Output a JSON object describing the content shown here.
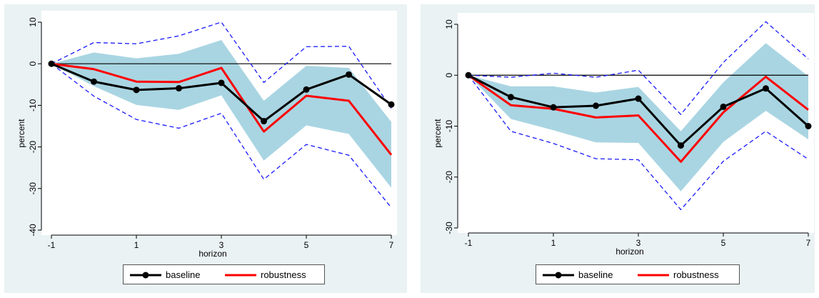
{
  "chart_data": [
    {
      "type": "line",
      "xlabel": "horizon",
      "ylabel": "percent",
      "x": [
        -1,
        0,
        1,
        2,
        3,
        4,
        5,
        6,
        7
      ],
      "xticks": [
        "-1",
        "1",
        "3",
        "5",
        "7"
      ],
      "yticks": [
        "10",
        "0",
        "-10",
        "-20",
        "-30",
        "-40"
      ],
      "ylim": [
        -40,
        10
      ],
      "xlim": [
        -1,
        7
      ],
      "zero_line": true,
      "series": [
        {
          "name": "baseline",
          "color": "#000000",
          "markers": true,
          "values": [
            0,
            -4.3,
            -6.3,
            -5.9,
            -4.6,
            -13.8,
            -6.2,
            -2.6,
            -9.8
          ]
        },
        {
          "name": "robustness",
          "color": "#ff0000",
          "markers": false,
          "values": [
            0,
            -1.3,
            -4.3,
            -4.4,
            -1.0,
            -16.3,
            -7.7,
            -8.9,
            -21.9
          ]
        }
      ],
      "band_inner": {
        "color": "#a9d5e2",
        "upper": [
          0,
          2.7,
          1.3,
          2.4,
          5.7,
          -8.9,
          -0.5,
          -1.0,
          -14.0
        ],
        "lower": [
          0,
          -5.4,
          -9.9,
          -11.1,
          -7.6,
          -23.3,
          -14.8,
          -16.9,
          -29.8
        ]
      },
      "band_outer": {
        "color": "#1a1aff",
        "upper": [
          0,
          5.1,
          4.8,
          6.7,
          10.0,
          -4.5,
          4.1,
          4.2,
          -10.7
        ],
        "lower": [
          0,
          -7.8,
          -13.4,
          -15.5,
          -11.9,
          -27.8,
          -19.4,
          -22.0,
          -34.6
        ]
      },
      "legend": {
        "placement": "bottom",
        "items": [
          "baseline",
          "robustness"
        ]
      }
    },
    {
      "type": "line",
      "xlabel": "horizon",
      "ylabel": "percent",
      "x": [
        -1,
        0,
        1,
        2,
        3,
        4,
        5,
        6,
        7
      ],
      "xticks": [
        "-1",
        "1",
        "3",
        "5",
        "7"
      ],
      "yticks": [
        "10",
        "0",
        "-10",
        "-20",
        "-30"
      ],
      "ylim": [
        -30,
        10
      ],
      "xlim": [
        -1,
        7
      ],
      "zero_line": true,
      "series": [
        {
          "name": "baseline",
          "color": "#000000",
          "markers": true,
          "values": [
            0,
            -4.3,
            -6.3,
            -6.0,
            -4.6,
            -13.8,
            -6.2,
            -2.6,
            -10.0
          ]
        },
        {
          "name": "robustness",
          "color": "#ff0000",
          "markers": false,
          "values": [
            0,
            -5.9,
            -6.6,
            -8.3,
            -7.9,
            -17.0,
            -7.3,
            -0.3,
            -6.8
          ]
        }
      ],
      "band_inner": {
        "color": "#a9d5e2",
        "upper": [
          0,
          -2.2,
          -2.2,
          -3.4,
          -2.3,
          -11.0,
          -1.4,
          6.3,
          -0.2
        ],
        "lower": [
          0,
          -8.6,
          -10.8,
          -13.2,
          -13.3,
          -22.8,
          -13.1,
          -7.0,
          -12.6
        ]
      },
      "band_outer": {
        "color": "#1a1aff",
        "upper": [
          0,
          -0.4,
          0.4,
          -0.4,
          1.0,
          -7.7,
          2.5,
          10.5,
          3.2
        ],
        "lower": [
          0,
          -11.0,
          -13.4,
          -16.4,
          -16.6,
          -26.4,
          -16.9,
          -11.0,
          -16.5
        ]
      },
      "legend": {
        "placement": "bottom",
        "items": [
          "baseline",
          "robustness"
        ]
      }
    }
  ]
}
